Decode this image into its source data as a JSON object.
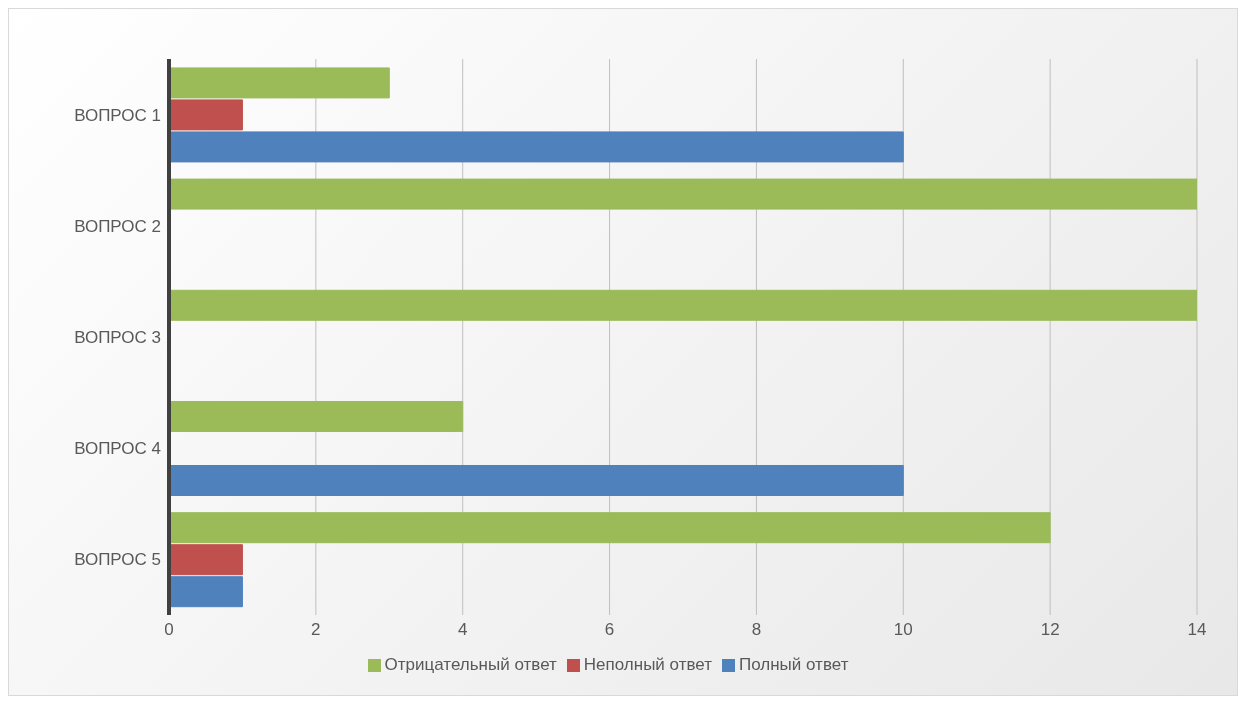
{
  "chart_data": {
    "type": "bar",
    "orientation": "horizontal",
    "categories": [
      "ВОПРОС 1",
      "ВОПРОС 2",
      "ВОПРОС 3",
      "ВОПРОС 4",
      "ВОПРОС 5"
    ],
    "series": [
      {
        "name": "Отрицательный ответ",
        "color": "#9bbb59",
        "values": [
          3,
          14,
          14,
          4,
          12
        ]
      },
      {
        "name": "Неполный ответ",
        "color": "#c0504d",
        "values": [
          1,
          0,
          0,
          0,
          1
        ]
      },
      {
        "name": "Полный ответ",
        "color": "#4f81bd",
        "values": [
          10,
          0,
          0,
          10,
          1
        ]
      }
    ],
    "xlim": [
      0,
      14
    ],
    "xticks": [
      0,
      2,
      4,
      6,
      8,
      10,
      12,
      14
    ],
    "grid": "x",
    "legend": "bottom"
  }
}
